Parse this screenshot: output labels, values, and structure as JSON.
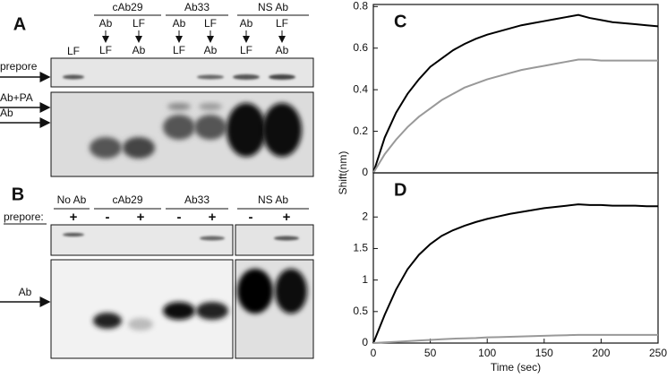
{
  "gel_a": {
    "panel_label": "A",
    "groups": [
      "cAb29",
      "Ab33",
      "NS Ab"
    ],
    "first_lane": "LF",
    "lanes": [
      {
        "top": "Ab",
        "bottom": "LF"
      },
      {
        "top": "LF",
        "bottom": "Ab"
      },
      {
        "top": "Ab",
        "bottom": "LF"
      },
      {
        "top": "LF",
        "bottom": "Ab"
      },
      {
        "top": "Ab",
        "bottom": "LF"
      },
      {
        "top": "LF",
        "bottom": "Ab"
      }
    ],
    "row_labels": [
      "prepore",
      "Ab+PA",
      "Ab"
    ]
  },
  "gel_b": {
    "panel_label": "B",
    "groups": [
      "No Ab",
      "cAb29",
      "Ab33",
      "NS Ab"
    ],
    "row_title": "prepore:",
    "signs": [
      "+",
      "-",
      "+",
      "-",
      "+",
      "-",
      "+"
    ],
    "row_labels": [
      "Ab"
    ]
  },
  "chart_data": [
    {
      "type": "line",
      "panel_label": "C",
      "ylabel": "Shift(nm)",
      "x": [
        0,
        10,
        20,
        30,
        40,
        50,
        60,
        70,
        80,
        90,
        100,
        110,
        120,
        130,
        140,
        150,
        160,
        170,
        180,
        190,
        200,
        210,
        220,
        230,
        240,
        250
      ],
      "xlim": [
        0,
        250
      ],
      "ylim": [
        0,
        0.81
      ],
      "yticks": [
        0,
        0.2,
        0.4,
        0.6,
        0.8
      ],
      "series": [
        {
          "color": "#000000",
          "values": [
            0,
            0.17,
            0.29,
            0.38,
            0.45,
            0.51,
            0.55,
            0.59,
            0.62,
            0.645,
            0.665,
            0.68,
            0.695,
            0.71,
            0.72,
            0.73,
            0.74,
            0.75,
            0.76,
            0.745,
            0.735,
            0.725,
            0.72,
            0.715,
            0.71,
            0.705
          ]
        },
        {
          "color": "#999999",
          "values": [
            0,
            0.09,
            0.16,
            0.22,
            0.27,
            0.31,
            0.35,
            0.38,
            0.41,
            0.43,
            0.45,
            0.465,
            0.48,
            0.495,
            0.505,
            0.515,
            0.525,
            0.535,
            0.545,
            0.545,
            0.54,
            0.54,
            0.54,
            0.54,
            0.54,
            0.54
          ]
        }
      ]
    },
    {
      "type": "line",
      "panel_label": "D",
      "xlabel": "Time (sec)",
      "x": [
        0,
        10,
        20,
        30,
        40,
        50,
        60,
        70,
        80,
        90,
        100,
        110,
        120,
        130,
        140,
        150,
        160,
        170,
        180,
        190,
        200,
        210,
        220,
        230,
        240,
        250
      ],
      "xlim": [
        0,
        250
      ],
      "xticks": [
        0,
        50,
        100,
        150,
        200,
        250
      ],
      "ylim": [
        0,
        2.7
      ],
      "yticks": [
        0,
        0.5,
        1,
        1.5,
        2
      ],
      "series": [
        {
          "color": "#000000",
          "values": [
            0,
            0.45,
            0.85,
            1.17,
            1.4,
            1.57,
            1.7,
            1.79,
            1.86,
            1.92,
            1.97,
            2.01,
            2.05,
            2.08,
            2.11,
            2.14,
            2.16,
            2.18,
            2.2,
            2.19,
            2.19,
            2.18,
            2.18,
            2.18,
            2.17,
            2.17
          ]
        },
        {
          "color": "#999999",
          "values": [
            0,
            0.01,
            0.02,
            0.03,
            0.04,
            0.05,
            0.06,
            0.07,
            0.075,
            0.08,
            0.09,
            0.095,
            0.1,
            0.105,
            0.11,
            0.115,
            0.12,
            0.125,
            0.13,
            0.13,
            0.13,
            0.13,
            0.13,
            0.13,
            0.13,
            0.13
          ]
        }
      ]
    }
  ]
}
